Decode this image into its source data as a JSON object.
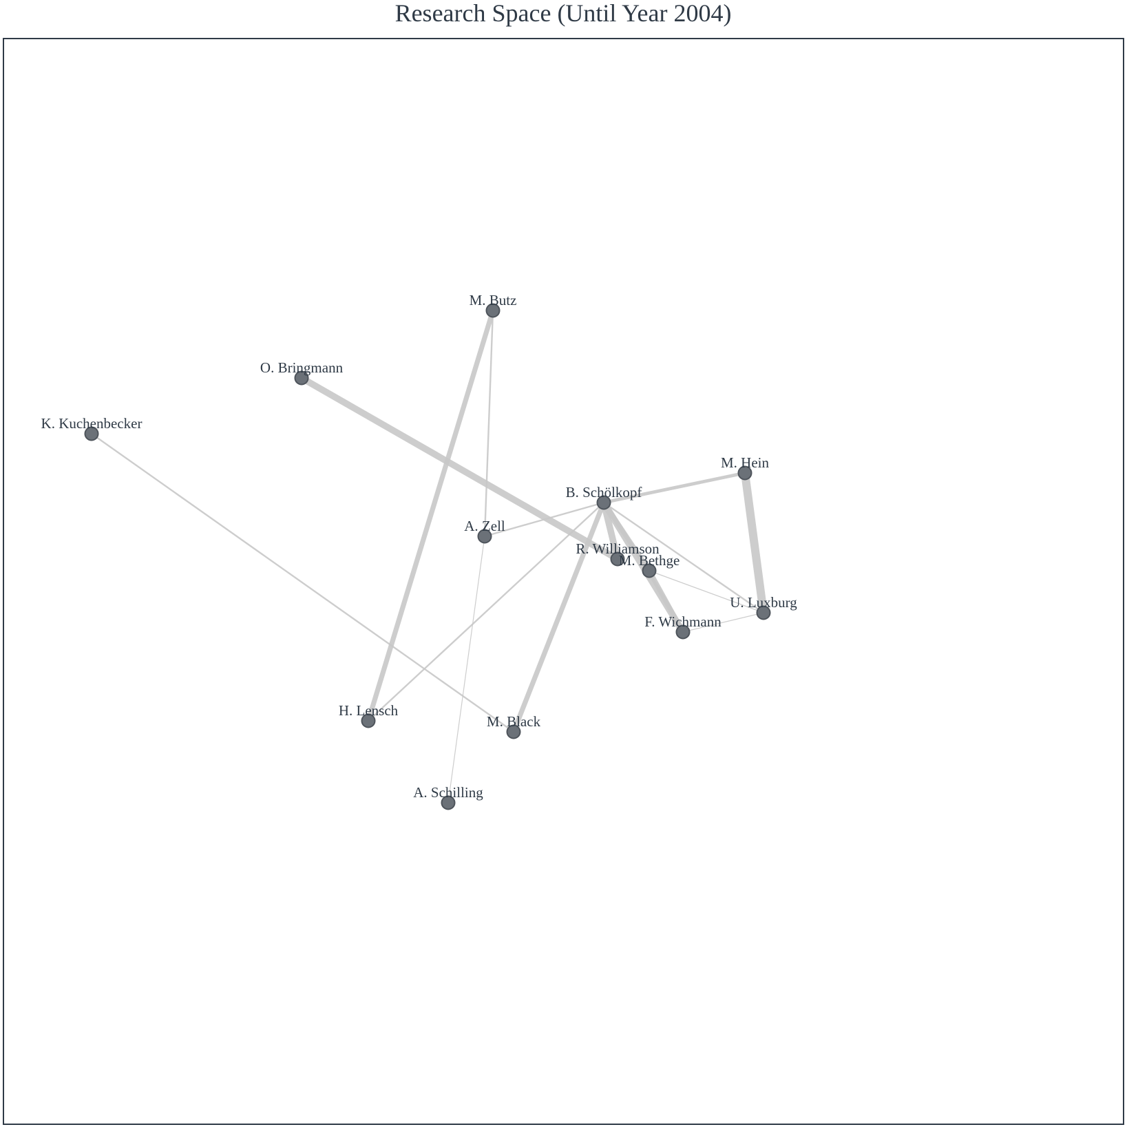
{
  "title": "Research Space (Until Year 2004)",
  "colors": {
    "node_fill": "#6b7178",
    "node_stroke": "#4e545b",
    "edge": "#c8c8c8",
    "frame": "#2f3a46",
    "text": "#2f3a46"
  },
  "nodes": [
    {
      "id": "butz",
      "label": "M. Butz"
    },
    {
      "id": "bringmann",
      "label": "O. Bringmann"
    },
    {
      "id": "kuchenbecker",
      "label": "K. Kuchenbecker"
    },
    {
      "id": "hein",
      "label": "M. Hein"
    },
    {
      "id": "schoelkopf",
      "label": "B. Schölkopf"
    },
    {
      "id": "zell",
      "label": "A. Zell"
    },
    {
      "id": "williamson",
      "label": "R. Williamson"
    },
    {
      "id": "bethge",
      "label": "M. Bethge"
    },
    {
      "id": "luxburg",
      "label": "U. Luxburg"
    },
    {
      "id": "wichmann",
      "label": "F. Wichmann"
    },
    {
      "id": "lensch",
      "label": "H. Lensch"
    },
    {
      "id": "black",
      "label": "M. Black"
    },
    {
      "id": "schilling",
      "label": "A. Schilling"
    }
  ],
  "edges": [
    {
      "source": "bringmann",
      "target": "williamson",
      "weight": 4
    },
    {
      "source": "butz",
      "target": "lensch",
      "weight": 3
    },
    {
      "source": "butz",
      "target": "zell",
      "weight": 1
    },
    {
      "source": "kuchenbecker",
      "target": "black",
      "weight": 1
    },
    {
      "source": "schoelkopf",
      "target": "hein",
      "weight": 2
    },
    {
      "source": "schoelkopf",
      "target": "zell",
      "weight": 1
    },
    {
      "source": "schoelkopf",
      "target": "williamson",
      "weight": 4
    },
    {
      "source": "schoelkopf",
      "target": "bethge",
      "weight": 3
    },
    {
      "source": "schoelkopf",
      "target": "wichmann",
      "weight": 4
    },
    {
      "source": "schoelkopf",
      "target": "luxburg",
      "weight": 1
    },
    {
      "source": "schoelkopf",
      "target": "lensch",
      "weight": 1
    },
    {
      "source": "schoelkopf",
      "target": "black",
      "weight": 3
    },
    {
      "source": "hein",
      "target": "luxburg",
      "weight": 5
    },
    {
      "source": "bethge",
      "target": "luxburg",
      "weight": 0.5
    },
    {
      "source": "bethge",
      "target": "wichmann",
      "weight": 3
    },
    {
      "source": "luxburg",
      "target": "wichmann",
      "weight": 0.5
    },
    {
      "source": "zell",
      "target": "schilling",
      "weight": 0.5
    }
  ]
}
